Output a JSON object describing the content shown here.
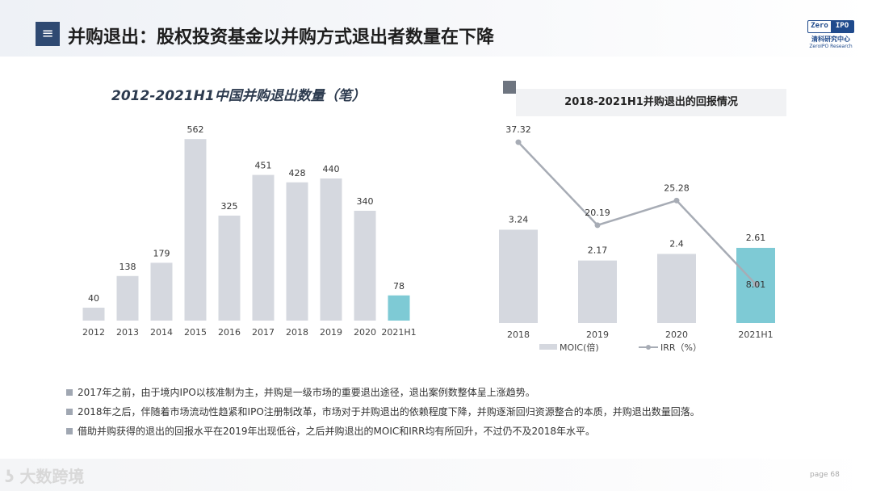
{
  "header": {
    "menu_icon": "≡",
    "title": "并购退出：股权投资基金以并购方式退出者数量在下降"
  },
  "logo": {
    "mark_left": "Zero",
    "mark_right": "IPO",
    "cn": "清科研究中心",
    "en": "ZeroIPO Research"
  },
  "chart_data": [
    {
      "type": "bar",
      "title": "2012-2021H1中国并购退出数量（笔）",
      "categories": [
        "2012",
        "2013",
        "2014",
        "2015",
        "2016",
        "2017",
        "2018",
        "2019",
        "2020",
        "2021H1"
      ],
      "values": [
        40,
        138,
        179,
        562,
        325,
        451,
        428,
        440,
        340,
        78
      ],
      "ylim": [
        0,
        600
      ],
      "colors": {
        "bar": "#d5d8df",
        "highlight": "#7ecad5"
      },
      "highlight_index": 9
    },
    {
      "type": "bar+line",
      "title": "2018-2021H1并购退出的回报情况",
      "categories": [
        "2018",
        "2019",
        "2020",
        "2021H1"
      ],
      "series": [
        {
          "name": "MOIC(倍)",
          "type": "bar",
          "values": [
            3.24,
            2.17,
            2.4,
            2.61
          ],
          "labels": [
            "3.24",
            "2.17",
            "2.4",
            "2.61"
          ]
        },
        {
          "name": "IRR（%）",
          "type": "line",
          "values": [
            37.32,
            20.19,
            25.28,
            8.01
          ],
          "labels": [
            "37.32",
            "20.19",
            "25.28",
            "8.01"
          ]
        }
      ],
      "ylim_bar": [
        0,
        5.3
      ],
      "ylim_line": [
        0,
        50
      ],
      "colors": {
        "bar": "#d5d8df",
        "highlight": "#7ecad5",
        "line": "#a7acb5"
      },
      "highlight_index": 3
    }
  ],
  "bullets": [
    "2017年之前，由于境内IPO以核准制为主，并购是一级市场的重要退出途径，退出案例数整体呈上涨趋势。",
    "2018年之后，伴随着市场流动性趋紧和IPO注册制改革，市场对于并购退出的依赖程度下降，并购逐渐回归资源整合的本质，并购退出数量回落。",
    "借助并购获得的退出的回报水平在2019年出现低谷，之后并购退出的MOIC和IRR均有所回升，不过仍不及2018年水平。"
  ],
  "footer": {
    "watermark": "大数跨境",
    "page_label": "page  68"
  }
}
